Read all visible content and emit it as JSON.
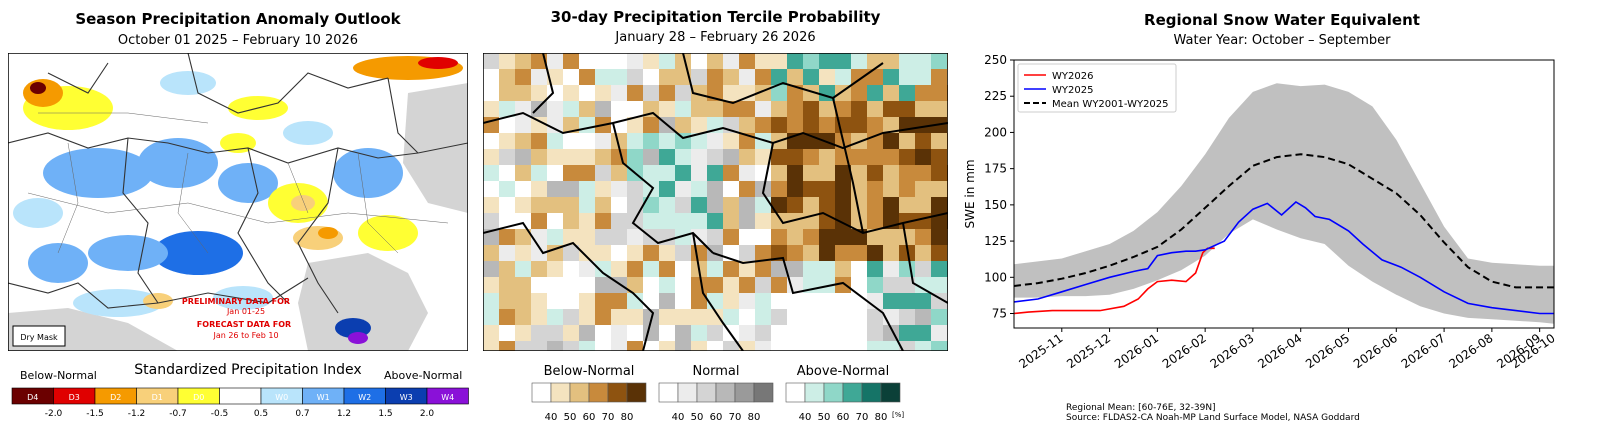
{
  "panel1": {
    "title": "Season Precipitation Anomaly Outlook",
    "subtitle": "October 01 2025 – February 10 2026",
    "note_line1": "PRELIMINARY DATA FOR",
    "note_line2": "Jan 01-25",
    "note_line3": "FORECAST DATA FOR",
    "note_line4": "Jan 26 to Feb 10",
    "dry_mask": "Dry Mask",
    "legend_title": "Standardized Precipitation Index",
    "legend_low": "Below-Normal",
    "legend_high": "Above-Normal",
    "classes": [
      {
        "label": "D4",
        "color": "#6b0000"
      },
      {
        "label": "D3",
        "color": "#e00000"
      },
      {
        "label": "D2",
        "color": "#f59a00"
      },
      {
        "label": "D1",
        "color": "#f8d07a"
      },
      {
        "label": "D0",
        "color": "#ffff33"
      },
      {
        "label": "",
        "color": "#ffffff"
      },
      {
        "label": "W0",
        "color": "#b9e4fb"
      },
      {
        "label": "W1",
        "color": "#6fb1f7"
      },
      {
        "label": "W2",
        "color": "#1e6fe6"
      },
      {
        "label": "W3",
        "color": "#0b3eb0"
      },
      {
        "label": "W4",
        "color": "#8a11d8"
      }
    ],
    "ticks": [
      "-2.0",
      "-1.5",
      "-1.2",
      "-0.7",
      "-0.5",
      "0.5",
      "0.7",
      "1.2",
      "1.5",
      "2.0"
    ]
  },
  "panel2": {
    "title": "30-day Precipitation Tercile Probability",
    "subtitle": "January 28 – February 26 2026",
    "groups": [
      {
        "name": "Below-Normal",
        "colors": [
          "#ffffff",
          "#f4e3bf",
          "#e3c07f",
          "#c88a3c",
          "#8e5310",
          "#5a3206"
        ]
      },
      {
        "name": "Normal",
        "colors": [
          "#ffffff",
          "#ececec",
          "#d4d4d4",
          "#b8b8b8",
          "#9a9a9a",
          "#777777"
        ]
      },
      {
        "name": "Above-Normal",
        "colors": [
          "#ffffff",
          "#cdeee6",
          "#8fd7c8",
          "#3fa896",
          "#157467",
          "#0b4038"
        ]
      }
    ],
    "ticks": [
      "40",
      "50",
      "60",
      "70",
      "80"
    ],
    "unit": "[%]"
  },
  "panel3": {
    "title": "Regional Snow Water Equivalent",
    "subtitle": "Water Year: October – September",
    "ylabel": "SWE in mm",
    "footnote1": "Regional Mean: [60-76E, 32-39N]",
    "footnote2": "Source: FLDAS2-CA Noah-MP Land Surface Model, NASA Goddard"
  },
  "chart_data": {
    "type": "line",
    "title": "Regional Snow Water Equivalent",
    "subtitle": "Water Year: October – September",
    "xlabel": "",
    "ylabel": "SWE in mm",
    "xlim": [
      0,
      11.3
    ],
    "ylim": [
      65,
      250
    ],
    "yticks": [
      75,
      100,
      125,
      150,
      175,
      200,
      225,
      250
    ],
    "xticks": [
      {
        "label": "2025-11",
        "x": 1
      },
      {
        "label": "2025-12",
        "x": 2
      },
      {
        "label": "2026-01",
        "x": 3
      },
      {
        "label": "2026-02",
        "x": 4
      },
      {
        "label": "2026-03",
        "x": 5
      },
      {
        "label": "2026-04",
        "x": 6
      },
      {
        "label": "2026-05",
        "x": 7
      },
      {
        "label": "2026-06",
        "x": 8
      },
      {
        "label": "2026-07",
        "x": 9
      },
      {
        "label": "2026-08",
        "x": 10
      },
      {
        "label": "2026-09",
        "x": 11
      },
      {
        "label": "2026-10",
        "x": 12
      }
    ],
    "legend": [
      "WY2026",
      "WY2025",
      "Mean WY2001-WY2025"
    ],
    "legend_position": "top-left",
    "band": {
      "name": "Range WY2001-WY2025",
      "x": [
        0,
        0.5,
        1,
        1.5,
        2,
        2.5,
        3,
        3.5,
        4,
        4.5,
        5,
        5.5,
        6,
        6.5,
        7,
        7.5,
        8,
        8.5,
        9,
        9.5,
        10,
        10.5,
        11,
        11.3
      ],
      "upper": [
        109,
        111,
        113,
        118,
        123,
        132,
        145,
        163,
        185,
        210,
        228,
        234,
        232,
        233,
        228,
        218,
        195,
        165,
        135,
        113,
        110,
        109,
        108,
        108
      ],
      "lower": [
        86,
        86,
        87,
        87,
        88,
        92,
        98,
        105,
        115,
        130,
        140,
        133,
        127,
        123,
        108,
        97,
        88,
        80,
        75,
        72,
        71,
        70,
        69,
        68
      ]
    },
    "series": [
      {
        "name": "WY2026",
        "color": "#ff0000",
        "x": [
          0,
          0.3,
          0.8,
          1.3,
          1.8,
          2.3,
          2.6,
          2.8,
          3.0,
          3.3,
          3.6,
          3.8,
          3.95,
          4.05,
          4.2
        ],
        "y": [
          75,
          76,
          77,
          77,
          77,
          80,
          85,
          92,
          97,
          98,
          97,
          103,
          117,
          120,
          120
        ]
      },
      {
        "name": "WY2025",
        "color": "#0000ff",
        "x": [
          0,
          0.5,
          1,
          1.5,
          2,
          2.5,
          2.8,
          3,
          3.3,
          3.6,
          3.8,
          4,
          4.4,
          4.7,
          5,
          5.3,
          5.6,
          5.9,
          6.1,
          6.3,
          6.6,
          7,
          7.3,
          7.7,
          8.1,
          8.5,
          9,
          9.5,
          10,
          10.5,
          11,
          11.3
        ],
        "y": [
          83,
          85,
          90,
          95,
          100,
          104,
          106,
          115,
          117,
          118,
          118,
          119,
          125,
          138,
          147,
          151,
          143,
          152,
          148,
          142,
          140,
          132,
          123,
          112,
          107,
          100,
          90,
          82,
          79,
          77,
          75,
          75
        ]
      },
      {
        "name": "Mean WY2001-WY2025",
        "color": "#000000",
        "dashed": true,
        "x": [
          0,
          0.5,
          1,
          1.5,
          2,
          2.5,
          3,
          3.5,
          4,
          4.5,
          5,
          5.5,
          6,
          6.5,
          7,
          7.5,
          8,
          8.5,
          9,
          9.5,
          10,
          10.5,
          11,
          11.3
        ],
        "y": [
          94,
          96,
          99,
          103,
          108,
          114,
          121,
          133,
          148,
          163,
          177,
          183,
          185,
          183,
          178,
          168,
          158,
          143,
          124,
          107,
          97,
          93,
          93,
          93
        ]
      }
    ]
  }
}
